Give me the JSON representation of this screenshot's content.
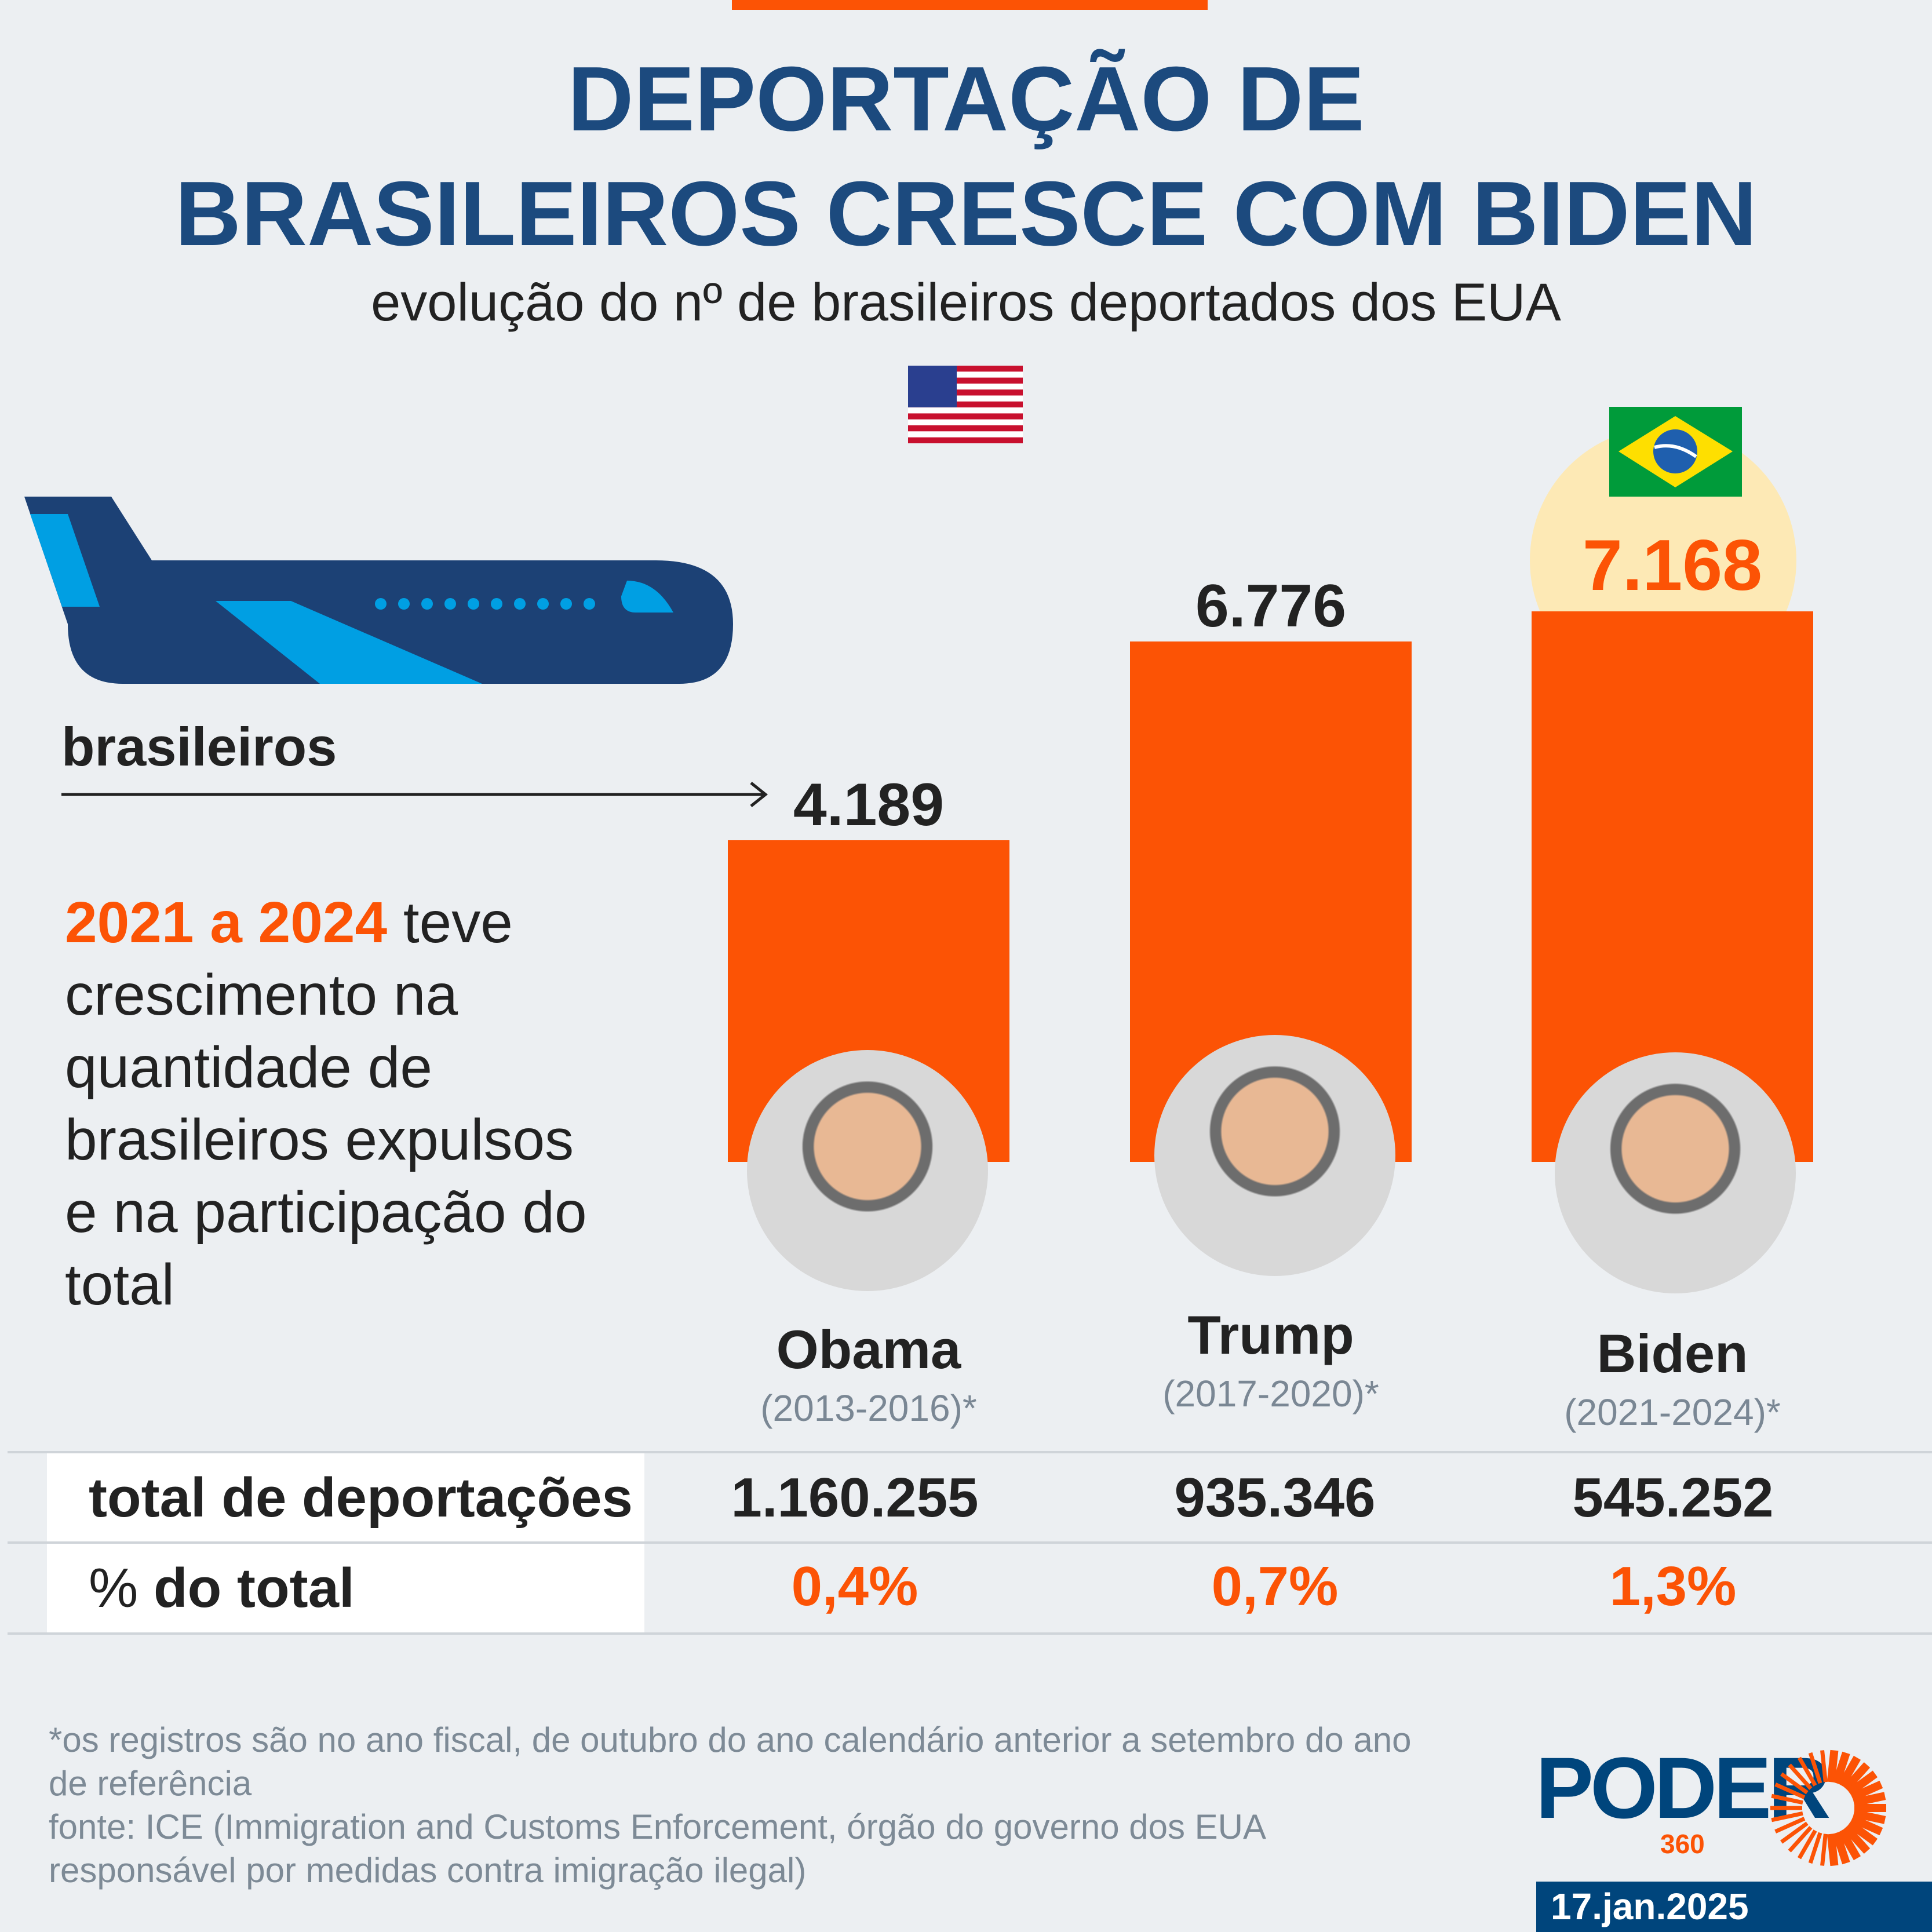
{
  "title_line1": "DEPORTAÇÃO DE",
  "title_line2": "BRASILEIROS CRESCE COM BIDEN",
  "subtitle": "evolução do nº de brasileiros deportados dos EUA",
  "series_label": "brasileiros",
  "description": {
    "highlight": "2021 a 2024",
    "rest_line1": " teve",
    "lines": [
      "crescimento na",
      "quantidade de",
      "brasileiros expulsos",
      "e na participação do",
      "total"
    ]
  },
  "chart_data": {
    "type": "bar",
    "title": "DEPORTAÇÃO DE BRASILEIROS CRESCE COM BIDEN",
    "categories": [
      "Obama",
      "Trump",
      "Biden"
    ],
    "periods": [
      "(2013-2016)*",
      "(2017-2020)*",
      "(2021-2024)*"
    ],
    "values": [
      4189,
      6776,
      7168
    ],
    "value_labels": [
      "4.189",
      "6.776",
      "7.168"
    ],
    "ylabel": "brasileiros",
    "ylim": [
      0,
      7168
    ]
  },
  "table": {
    "rows": [
      {
        "label": "total de deportações",
        "values": [
          "1.160.255",
          "935.346",
          "545.252"
        ]
      },
      {
        "label_prefix": "% ",
        "label": "do total",
        "values": [
          "0,4%",
          "0,7%",
          "1,3%"
        ]
      }
    ]
  },
  "footnote": [
    "*os registros são no ano fiscal, de outubro do ano calendário anterior a setembro do ano",
    "de referência",
    "fonte: ICE (Immigration and Customs Enforcement, órgão do governo dos EUA",
    "responsável por medidas contra imigração ilegal)"
  ],
  "logo": {
    "word": "PODER",
    "number": "360"
  },
  "date": "17.jan.2025",
  "colors": {
    "accent": "#fc5305",
    "navy": "#1c4a7e",
    "highlight_circle": "#fde9b5"
  }
}
